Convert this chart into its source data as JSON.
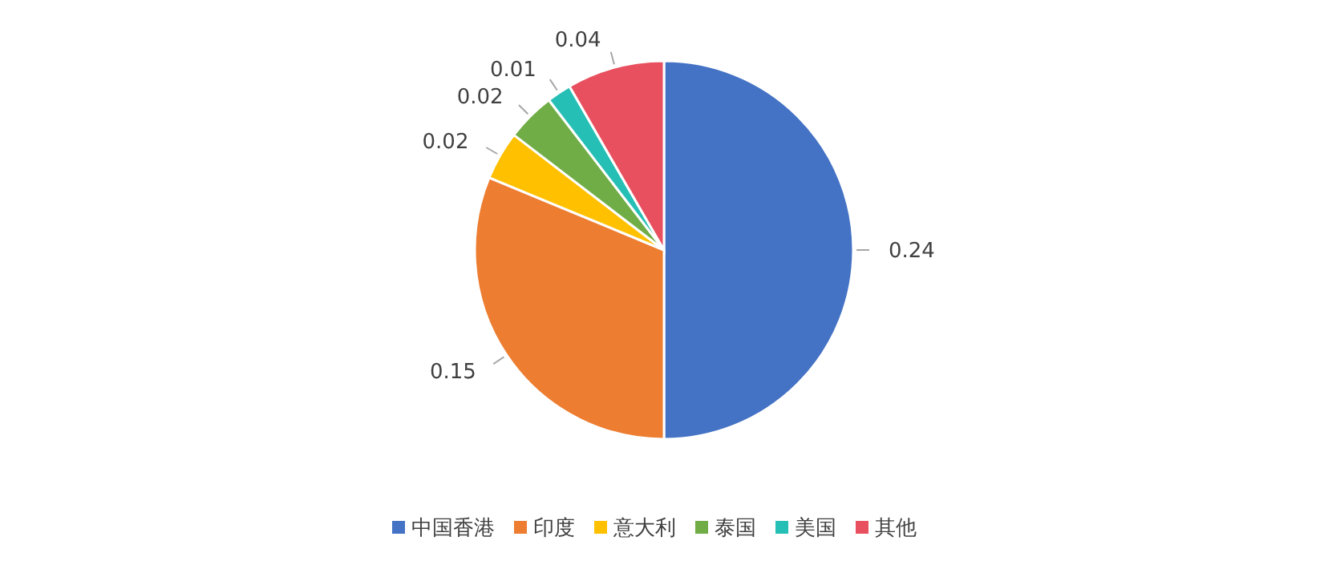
{
  "chart_data": {
    "type": "pie",
    "categories": [
      "中国香港",
      "印度",
      "意大利",
      "泰国",
      "美国",
      "其他"
    ],
    "values": [
      0.24,
      0.15,
      0.02,
      0.02,
      0.01,
      0.04
    ],
    "colors": [
      "#4472c4",
      "#ed7d31",
      "#ffc000",
      "#70ad47",
      "#26bfb5",
      "#e8505f"
    ],
    "data_labels": true,
    "legend": "bottom"
  }
}
